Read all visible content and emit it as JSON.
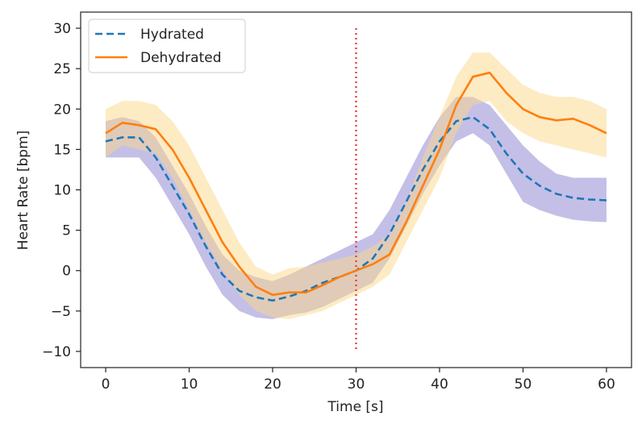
{
  "chart_data": {
    "type": "line",
    "title": "",
    "xlabel": "Time [s]",
    "ylabel": "Heart Rate [bpm]",
    "xlim": [
      -3,
      63
    ],
    "ylim": [
      -12,
      32
    ],
    "xticks": [
      0,
      10,
      20,
      30,
      40,
      50,
      60
    ],
    "yticks": [
      -10,
      -5,
      0,
      5,
      10,
      15,
      20,
      25,
      30
    ],
    "xtick_labels": [
      "0",
      "10",
      "20",
      "30",
      "40",
      "50",
      "60"
    ],
    "ytick_labels": [
      "−10",
      "−5",
      "0",
      "5",
      "10",
      "15",
      "20",
      "25",
      "30"
    ],
    "grid": false,
    "legend": {
      "location": "top-left"
    },
    "vline": {
      "x": 30,
      "ymin": -10,
      "ymax": 30,
      "color": "#e8403a",
      "style": "dotted"
    },
    "series": [
      {
        "name": "Hydrated",
        "color": "#1f77b4",
        "band_color": "#7d72c9",
        "style": "dashed",
        "x": [
          0,
          2,
          4,
          6,
          8,
          10,
          12,
          14,
          16,
          18,
          20,
          22,
          24,
          26,
          28,
          30,
          32,
          34,
          36,
          38,
          40,
          42,
          44,
          46,
          48,
          50,
          52,
          54,
          56,
          58,
          60
        ],
        "y": [
          16,
          16.5,
          16.5,
          14,
          10.5,
          7,
          3,
          -0.5,
          -2.5,
          -3.3,
          -3.7,
          -3.2,
          -2.5,
          -1.5,
          -0.8,
          0,
          1.5,
          4.5,
          8.5,
          12.5,
          16,
          18.5,
          19,
          17.5,
          14.5,
          12,
          10.5,
          9.5,
          9,
          8.8,
          8.7
        ],
        "upper": [
          18.5,
          19,
          18.5,
          16.5,
          13,
          9.5,
          5.5,
          2,
          0,
          -0.8,
          -1.3,
          -0.5,
          0.5,
          1.5,
          2.5,
          3.5,
          4.5,
          7.5,
          11.5,
          15.5,
          19,
          21.5,
          21.5,
          20.5,
          18,
          15.5,
          13.5,
          12,
          11.5,
          11.5,
          11.5
        ],
        "lower": [
          14,
          14,
          14,
          11.5,
          8,
          4.5,
          0.5,
          -3,
          -5,
          -5.8,
          -6,
          -5.5,
          -5.2,
          -4.5,
          -3.5,
          -2.5,
          -1.5,
          1.5,
          5.5,
          9.5,
          13,
          16,
          17,
          15.5,
          12,
          8.5,
          7.5,
          6.8,
          6.3,
          6.1,
          6
        ]
      },
      {
        "name": "Dehydrated",
        "color": "#ff7f0e",
        "band_color": "#fbd88a",
        "style": "solid",
        "x": [
          0,
          2,
          4,
          6,
          8,
          10,
          12,
          14,
          16,
          18,
          20,
          22,
          24,
          26,
          28,
          30,
          32,
          34,
          36,
          38,
          40,
          42,
          44,
          46,
          48,
          50,
          52,
          54,
          56,
          58,
          60
        ],
        "y": [
          17,
          18.3,
          18,
          17.5,
          15,
          11.5,
          7.5,
          3.5,
          0.5,
          -2,
          -3,
          -2.7,
          -2.7,
          -1.8,
          -0.8,
          0,
          0.8,
          2,
          6,
          10.5,
          15,
          20.5,
          24,
          24.5,
          22,
          20,
          19,
          18.6,
          18.8,
          18,
          17
        ],
        "upper": [
          20,
          21,
          21,
          20.5,
          18.5,
          15.5,
          11.5,
          7.5,
          3.5,
          0.5,
          -0.5,
          0.3,
          0.5,
          1,
          1.5,
          2,
          3,
          4.5,
          8.5,
          14,
          19,
          24,
          27,
          27,
          25,
          23,
          22,
          21.5,
          21.5,
          21,
          20
        ],
        "lower": [
          14,
          15.5,
          15,
          14.5,
          11.5,
          7.5,
          3.5,
          0,
          -3,
          -5,
          -5.8,
          -6,
          -5.5,
          -5,
          -4,
          -3,
          -2,
          -0.5,
          3.5,
          7.5,
          11.5,
          17,
          20.5,
          21,
          18.5,
          17,
          16,
          15.5,
          15,
          14.5,
          14
        ]
      }
    ]
  }
}
